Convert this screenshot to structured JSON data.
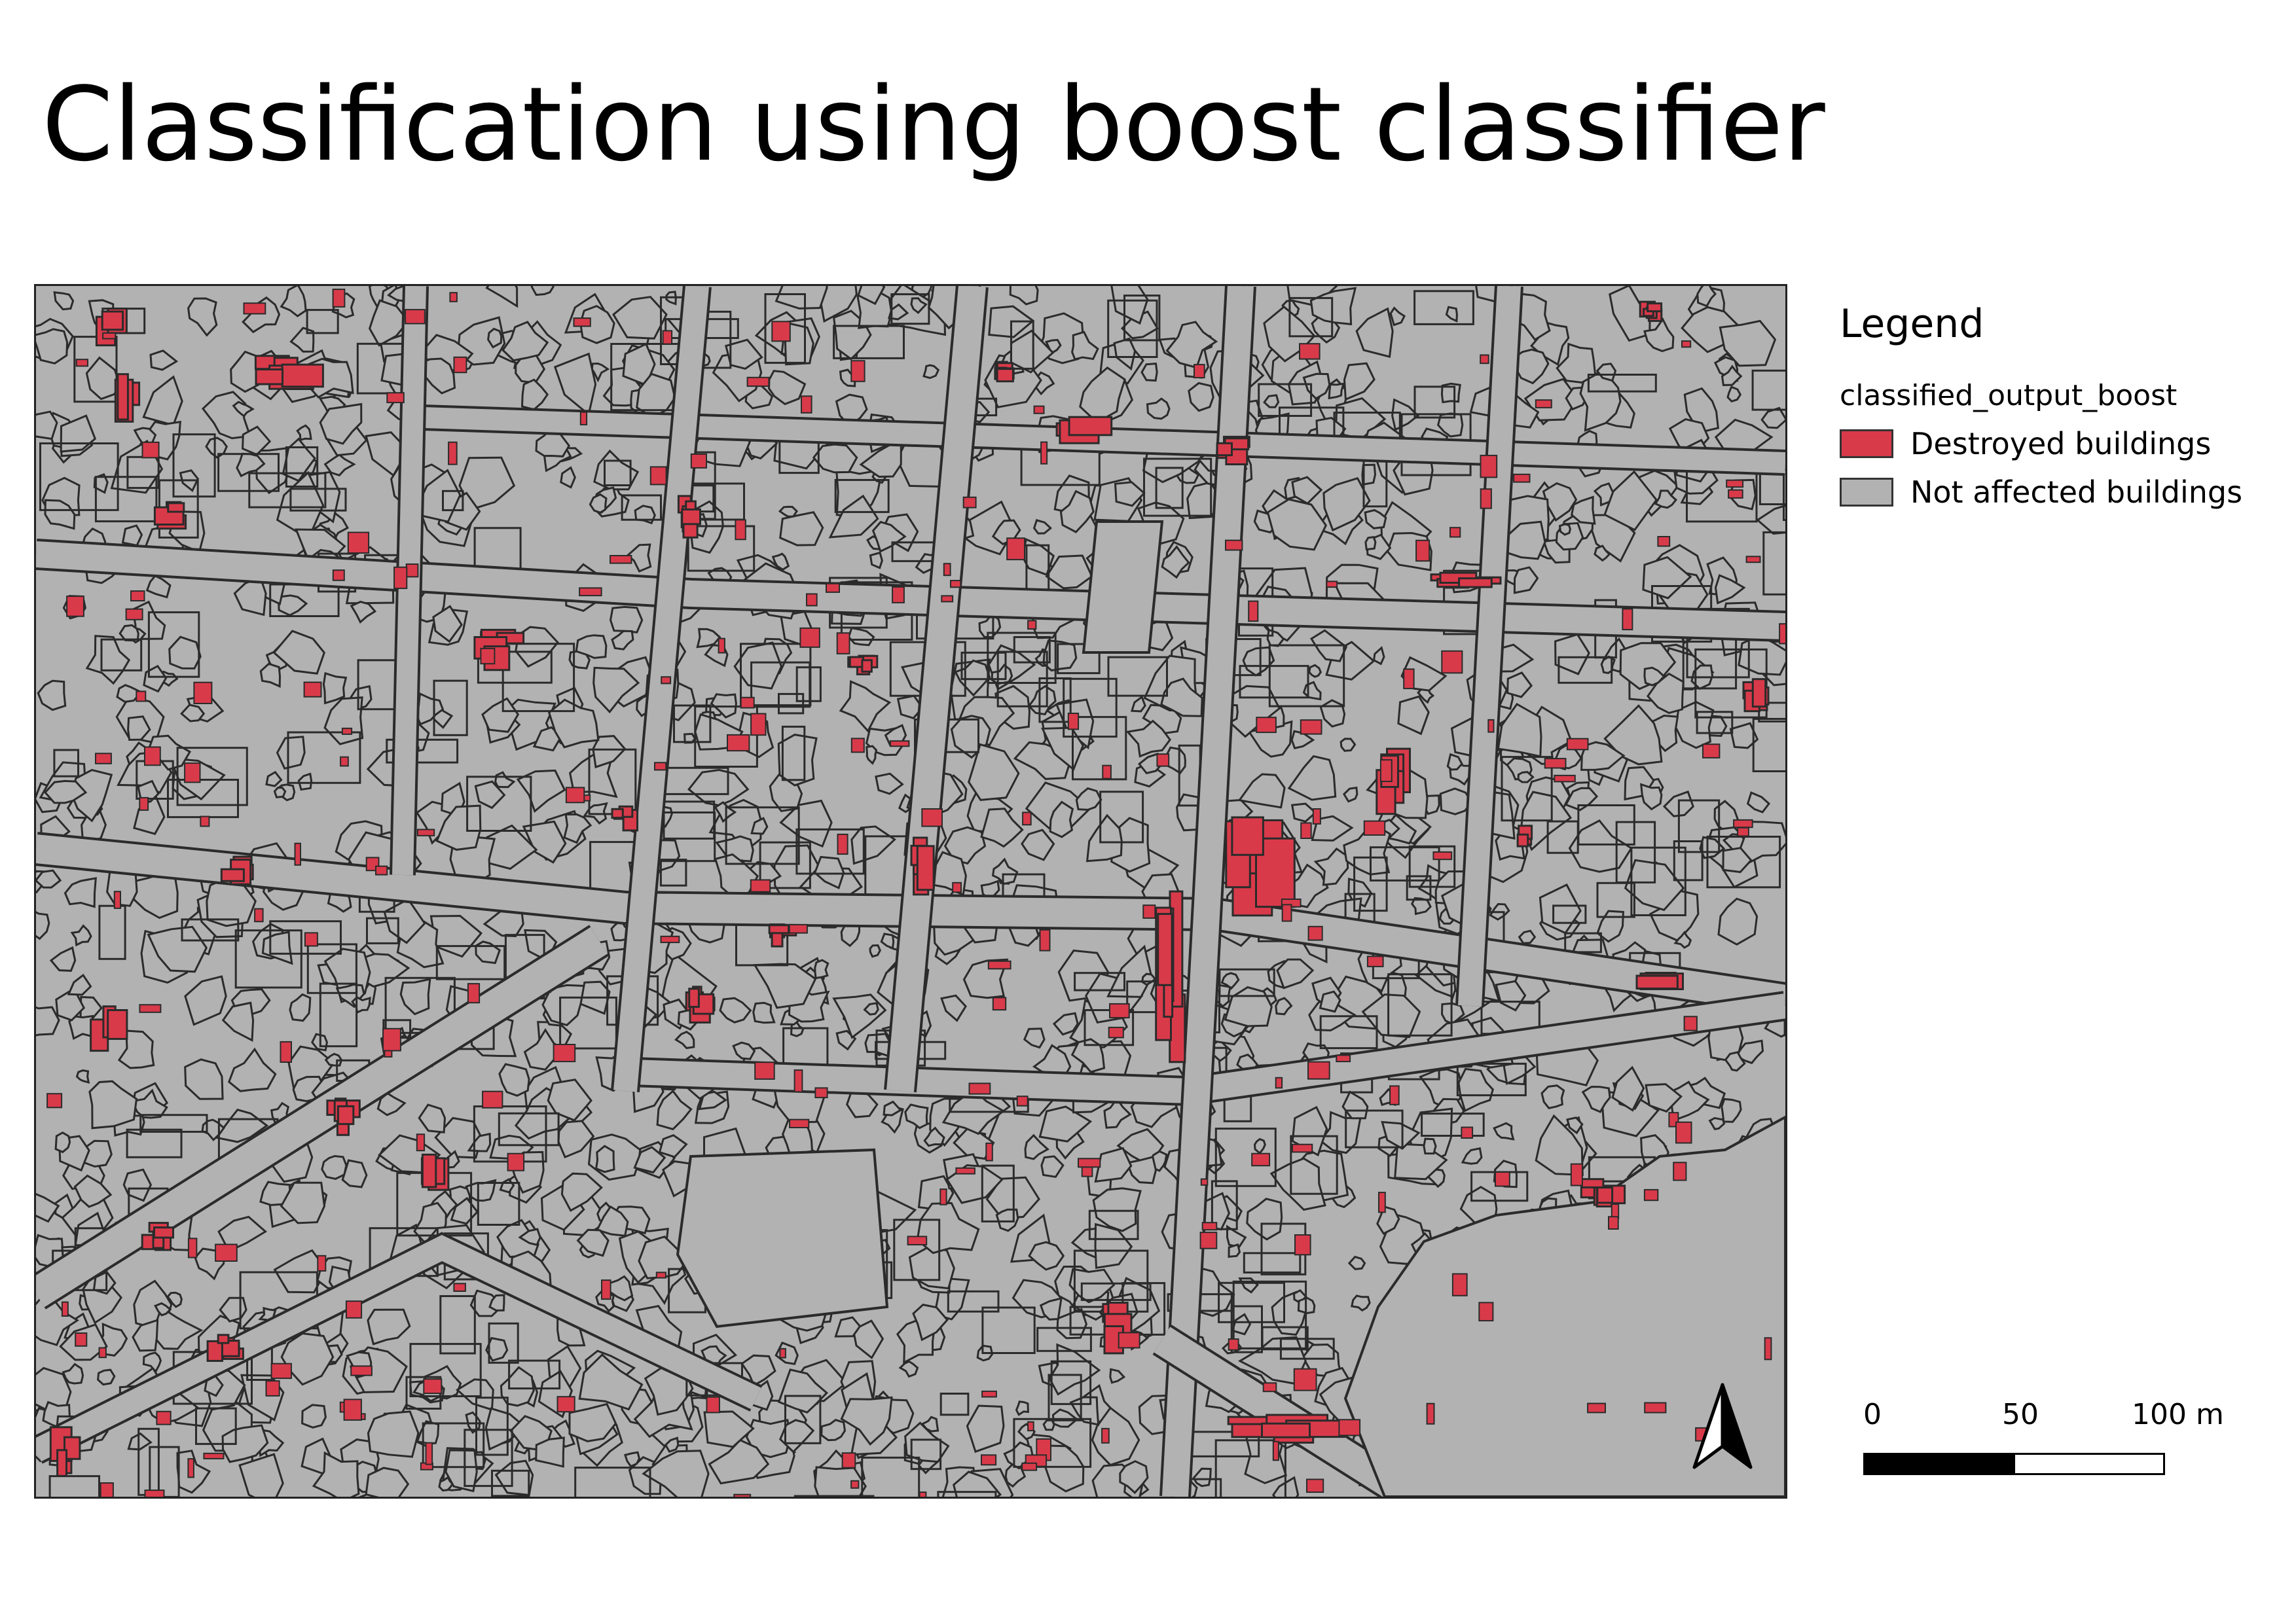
{
  "map": {
    "title": "Classification using boost classifier"
  },
  "legend": {
    "title": "Legend",
    "layer_name": "classified_output_boost",
    "items": [
      {
        "label": "Destroyed buildings",
        "color": "#d93a4a"
      },
      {
        "label": "Not affected buildings",
        "color": "#b2b2b2"
      }
    ]
  },
  "scalebar": {
    "labels": [
      "0",
      "50",
      "100 m"
    ]
  },
  "north_arrow": {
    "icon": "north-arrow-icon"
  },
  "colors": {
    "destroyed": "#d93a4a",
    "not_affected": "#b2b2b2",
    "outline": "#2b2b2b"
  }
}
